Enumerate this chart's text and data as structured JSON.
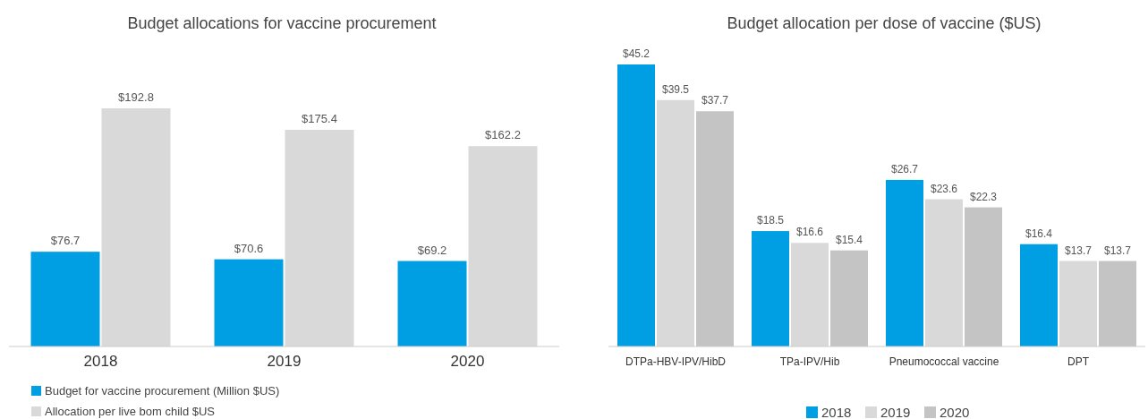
{
  "chart_data": [
    {
      "type": "bar",
      "title": "Budget allocations for vaccine procurement",
      "categories": [
        "2018",
        "2019",
        "2020"
      ],
      "legend": "bottom left",
      "series": [
        {
          "name": "Budget for vaccine procurement (Million $US)",
          "color": "#009fe3",
          "values": [
            76.7,
            70.6,
            69.2
          ],
          "value_labels": [
            "$76.7",
            "$70.6",
            "$69.2"
          ]
        },
        {
          "name": "Allocation per live bom child $US",
          "color": "#d9d9d9",
          "values": [
            192.8,
            175.4,
            162.2
          ],
          "value_labels": [
            "$192.8",
            "$175.4",
            "$162.2"
          ]
        }
      ]
    },
    {
      "type": "bar",
      "title": "Budget allocation per dose of vaccine ($US)",
      "categories": [
        "DTPa-HBV-IPV/HibD",
        "TPa-IPV/Hib",
        "Pneumococcal vaccine",
        "DPT"
      ],
      "legend": "bottom",
      "series": [
        {
          "name": "2018",
          "color": "#009fe3",
          "values": [
            45.2,
            18.5,
            26.7,
            16.4
          ],
          "value_labels": [
            "$45.2",
            "$18.5",
            "$26.7",
            "$16.4"
          ]
        },
        {
          "name": "2019",
          "color": "#d9d9d9",
          "values": [
            39.5,
            16.6,
            23.6,
            13.7
          ],
          "value_labels": [
            "$39.5",
            "$16.6",
            "$23.6",
            "$13.7"
          ]
        },
        {
          "name": "2020",
          "color": "#c4c4c4",
          "values": [
            37.7,
            15.4,
            22.3,
            13.7
          ],
          "value_labels": [
            "$37.7",
            "$15.4",
            "$22.3",
            "$13.7"
          ]
        }
      ]
    }
  ]
}
